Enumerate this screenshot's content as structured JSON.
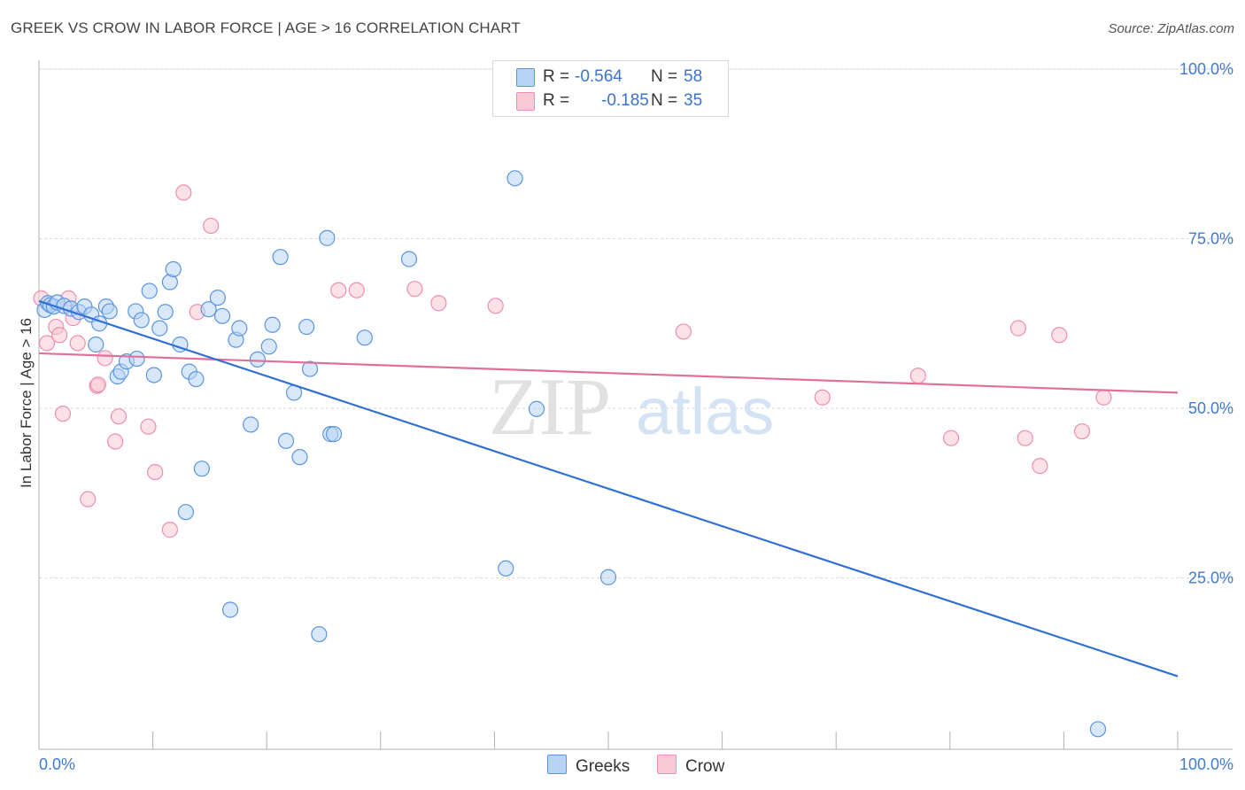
{
  "header": {
    "title": "GREEK VS CROW IN LABOR FORCE | AGE > 16 CORRELATION CHART",
    "source": "Source: ZipAtlas.com"
  },
  "legend": {
    "greeks": {
      "r_label": "R =",
      "r_value": "-0.564",
      "n_label": "N =",
      "n_value": "58"
    },
    "crow": {
      "r_label": "R =",
      "r_value": "-0.185",
      "n_label": "N =",
      "n_value": "35"
    }
  },
  "bottom_legend": {
    "greeks": "Greeks",
    "crow": "Crow"
  },
  "colors": {
    "greeks_fill": "#b8d3f5",
    "greeks_stroke": "#5b95dd",
    "greeks_line": "#2f6fd6",
    "crow_fill": "#f9c9d7",
    "crow_stroke": "#ec8fab",
    "crow_line": "#e0709a",
    "tick_text": "#3f7bd0",
    "grid": "#d9d9d9"
  },
  "chart_data": {
    "type": "scatter",
    "title": "GREEK VS CROW IN LABOR FORCE | AGE > 16 CORRELATION CHART",
    "xlabel": "",
    "ylabel": "In Labor Force | Age > 16",
    "xlim": [
      0,
      100
    ],
    "ylim": [
      0,
      105
    ],
    "x_tick_labels": [
      "0.0%",
      "100.0%"
    ],
    "y_ticks": [
      25,
      50,
      75,
      100
    ],
    "y_tick_labels": [
      "25.0%",
      "50.0%",
      "75.0%",
      "100.0%"
    ],
    "watermark": "ZIPatlas",
    "series": [
      {
        "name": "Greeks",
        "r": -0.564,
        "n": 58,
        "trend": {
          "x": [
            0,
            100
          ],
          "y": [
            65.8,
            10.5
          ]
        },
        "points": [
          [
            0.5,
            64.5
          ],
          [
            0.8,
            65.5
          ],
          [
            1.0,
            65.2
          ],
          [
            1.3,
            65.0
          ],
          [
            1.6,
            65.6
          ],
          [
            2.2,
            65.1
          ],
          [
            2.8,
            64.7
          ],
          [
            3.5,
            64.2
          ],
          [
            4.0,
            65.0
          ],
          [
            4.6,
            63.8
          ],
          [
            5.0,
            59.4
          ],
          [
            5.3,
            62.5
          ],
          [
            5.9,
            65.0
          ],
          [
            6.2,
            64.3
          ],
          [
            6.9,
            54.7
          ],
          [
            7.2,
            55.4
          ],
          [
            7.7,
            56.9
          ],
          [
            8.6,
            57.3
          ],
          [
            8.5,
            64.3
          ],
          [
            9.0,
            63.0
          ],
          [
            9.7,
            67.3
          ],
          [
            10.1,
            54.9
          ],
          [
            10.6,
            61.8
          ],
          [
            11.1,
            64.2
          ],
          [
            11.5,
            68.6
          ],
          [
            11.8,
            70.5
          ],
          [
            12.4,
            59.4
          ],
          [
            12.9,
            34.7
          ],
          [
            13.2,
            55.4
          ],
          [
            13.8,
            54.3
          ],
          [
            14.3,
            41.1
          ],
          [
            14.9,
            64.6
          ],
          [
            15.7,
            66.3
          ],
          [
            16.1,
            63.6
          ],
          [
            16.8,
            20.3
          ],
          [
            17.3,
            60.1
          ],
          [
            17.6,
            61.8
          ],
          [
            18.6,
            47.6
          ],
          [
            19.2,
            57.2
          ],
          [
            20.2,
            59.1
          ],
          [
            20.5,
            62.3
          ],
          [
            21.2,
            72.3
          ],
          [
            21.7,
            45.2
          ],
          [
            22.4,
            52.3
          ],
          [
            22.9,
            42.8
          ],
          [
            23.5,
            62.0
          ],
          [
            23.8,
            55.8
          ],
          [
            24.6,
            16.7
          ],
          [
            25.3,
            75.1
          ],
          [
            25.6,
            46.2
          ],
          [
            25.9,
            46.2
          ],
          [
            28.6,
            60.4
          ],
          [
            32.5,
            72.0
          ],
          [
            41.0,
            26.4
          ],
          [
            41.8,
            83.9
          ],
          [
            43.7,
            49.9
          ],
          [
            50.0,
            25.1
          ],
          [
            93.0,
            2.7
          ]
        ]
      },
      {
        "name": "Crow",
        "r": -0.185,
        "n": 35,
        "trend": {
          "x": [
            0,
            100
          ],
          "y": [
            58.1,
            52.3
          ]
        },
        "points": [
          [
            0.2,
            66.2
          ],
          [
            0.7,
            59.6
          ],
          [
            1.5,
            62.0
          ],
          [
            1.8,
            60.8
          ],
          [
            2.1,
            49.2
          ],
          [
            2.6,
            66.2
          ],
          [
            3.0,
            63.3
          ],
          [
            3.4,
            59.6
          ],
          [
            4.3,
            36.6
          ],
          [
            5.1,
            53.3
          ],
          [
            5.2,
            53.5
          ],
          [
            5.8,
            57.4
          ],
          [
            6.7,
            45.1
          ],
          [
            7.0,
            48.8
          ],
          [
            9.6,
            47.3
          ],
          [
            10.2,
            40.6
          ],
          [
            11.5,
            32.1
          ],
          [
            12.7,
            81.8
          ],
          [
            13.9,
            64.2
          ],
          [
            15.1,
            76.9
          ],
          [
            26.3,
            67.4
          ],
          [
            27.9,
            67.4
          ],
          [
            33.0,
            67.6
          ],
          [
            35.1,
            65.5
          ],
          [
            40.1,
            65.1
          ],
          [
            56.6,
            61.3
          ],
          [
            68.8,
            51.6
          ],
          [
            77.2,
            54.8
          ],
          [
            80.1,
            45.6
          ],
          [
            86.0,
            61.8
          ],
          [
            86.6,
            45.6
          ],
          [
            87.9,
            41.5
          ],
          [
            89.6,
            60.8
          ],
          [
            91.6,
            46.6
          ],
          [
            93.5,
            51.6
          ]
        ]
      }
    ]
  }
}
